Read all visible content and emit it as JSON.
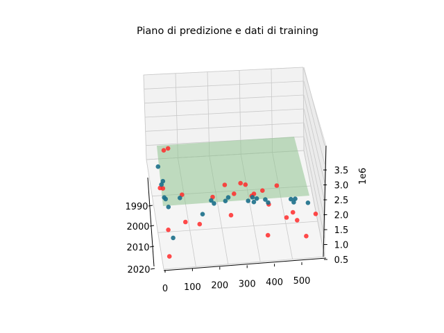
{
  "chart_data": {
    "type": "scatter",
    "projection": "3d",
    "title": "Piano di predizione e dati di training",
    "x_axis": {
      "label": "",
      "ticks": [
        "0",
        "100",
        "200",
        "300",
        "400",
        "500"
      ],
      "range": [
        -10,
        560
      ]
    },
    "y_axis": {
      "label": "",
      "ticks": [
        "1990",
        "2000",
        "2010",
        "2020"
      ],
      "range": [
        1983,
        2022
      ]
    },
    "z_axis": {
      "label": "",
      "ticks": [
        "0.5",
        "1.0",
        "1.5",
        "2.0",
        "2.5",
        "3.0",
        "3.5"
      ],
      "exponent": "1e6",
      "range": [
        0.4,
        3.9
      ]
    },
    "grid": true,
    "plane": {
      "name": "",
      "color": "#8fc28f"
    },
    "series": [
      {
        "name": "",
        "color": "#ff2a2a",
        "points": [
          [
            5,
            2010,
            3.7
          ],
          [
            20,
            2010,
            3.75
          ],
          [
            0,
            2005,
            2.4
          ],
          [
            10,
            2005,
            2.38
          ],
          [
            70,
            2010,
            2.3
          ],
          [
            90,
            2005,
            1.3
          ],
          [
            140,
            2005,
            1.2
          ],
          [
            185,
            2005,
            2.0
          ],
          [
            260,
            2005,
            2.05
          ],
          [
            315,
            2010,
            2.1
          ],
          [
            360,
            2005,
            2.08
          ],
          [
            220,
            2010,
            2.5
          ],
          [
            300,
            2005,
            2.3
          ],
          [
            330,
            2005,
            2.0
          ],
          [
            30,
            2005,
            1.1
          ],
          [
            375,
            2010,
            1.8
          ],
          [
            410,
            2005,
            2.2
          ],
          [
            445,
            2005,
            1.2
          ],
          [
            460,
            2010,
            1.5
          ],
          [
            475,
            2010,
            1.25
          ],
          [
            500,
            2015,
            0.9
          ],
          [
            540,
            2010,
            1.4
          ],
          [
            20,
            2015,
            0.6
          ],
          [
            380,
            2005,
            0.7
          ],
          [
            290,
            2000,
            2.2
          ],
          [
            250,
            2005,
            1.4
          ]
        ]
      },
      {
        "name": "",
        "color": "#1b6f8a",
        "points": [
          [
            0,
            2000,
            2.9
          ],
          [
            5,
            2005,
            2.5
          ],
          [
            15,
            2005,
            2.1
          ],
          [
            20,
            2005,
            2.05
          ],
          [
            70,
            2005,
            2.05
          ],
          [
            30,
            2005,
            1.8
          ],
          [
            180,
            2005,
            1.9
          ],
          [
            190,
            2005,
            1.8
          ],
          [
            230,
            2005,
            1.85
          ],
          [
            240,
            2005,
            1.95
          ],
          [
            310,
            2005,
            1.8
          ],
          [
            325,
            2005,
            1.9
          ],
          [
            330,
            2005,
            1.75
          ],
          [
            340,
            2005,
            1.85
          ],
          [
            370,
            2005,
            1.8
          ],
          [
            380,
            2005,
            1.7
          ],
          [
            460,
            2005,
            1.75
          ],
          [
            470,
            2005,
            1.65
          ],
          [
            475,
            2005,
            1.75
          ],
          [
            520,
            2005,
            1.6
          ],
          [
            40,
            2010,
            1.0
          ],
          [
            150,
            2005,
            1.5
          ],
          [
            10,
            2005,
            2.6
          ]
        ]
      }
    ]
  }
}
